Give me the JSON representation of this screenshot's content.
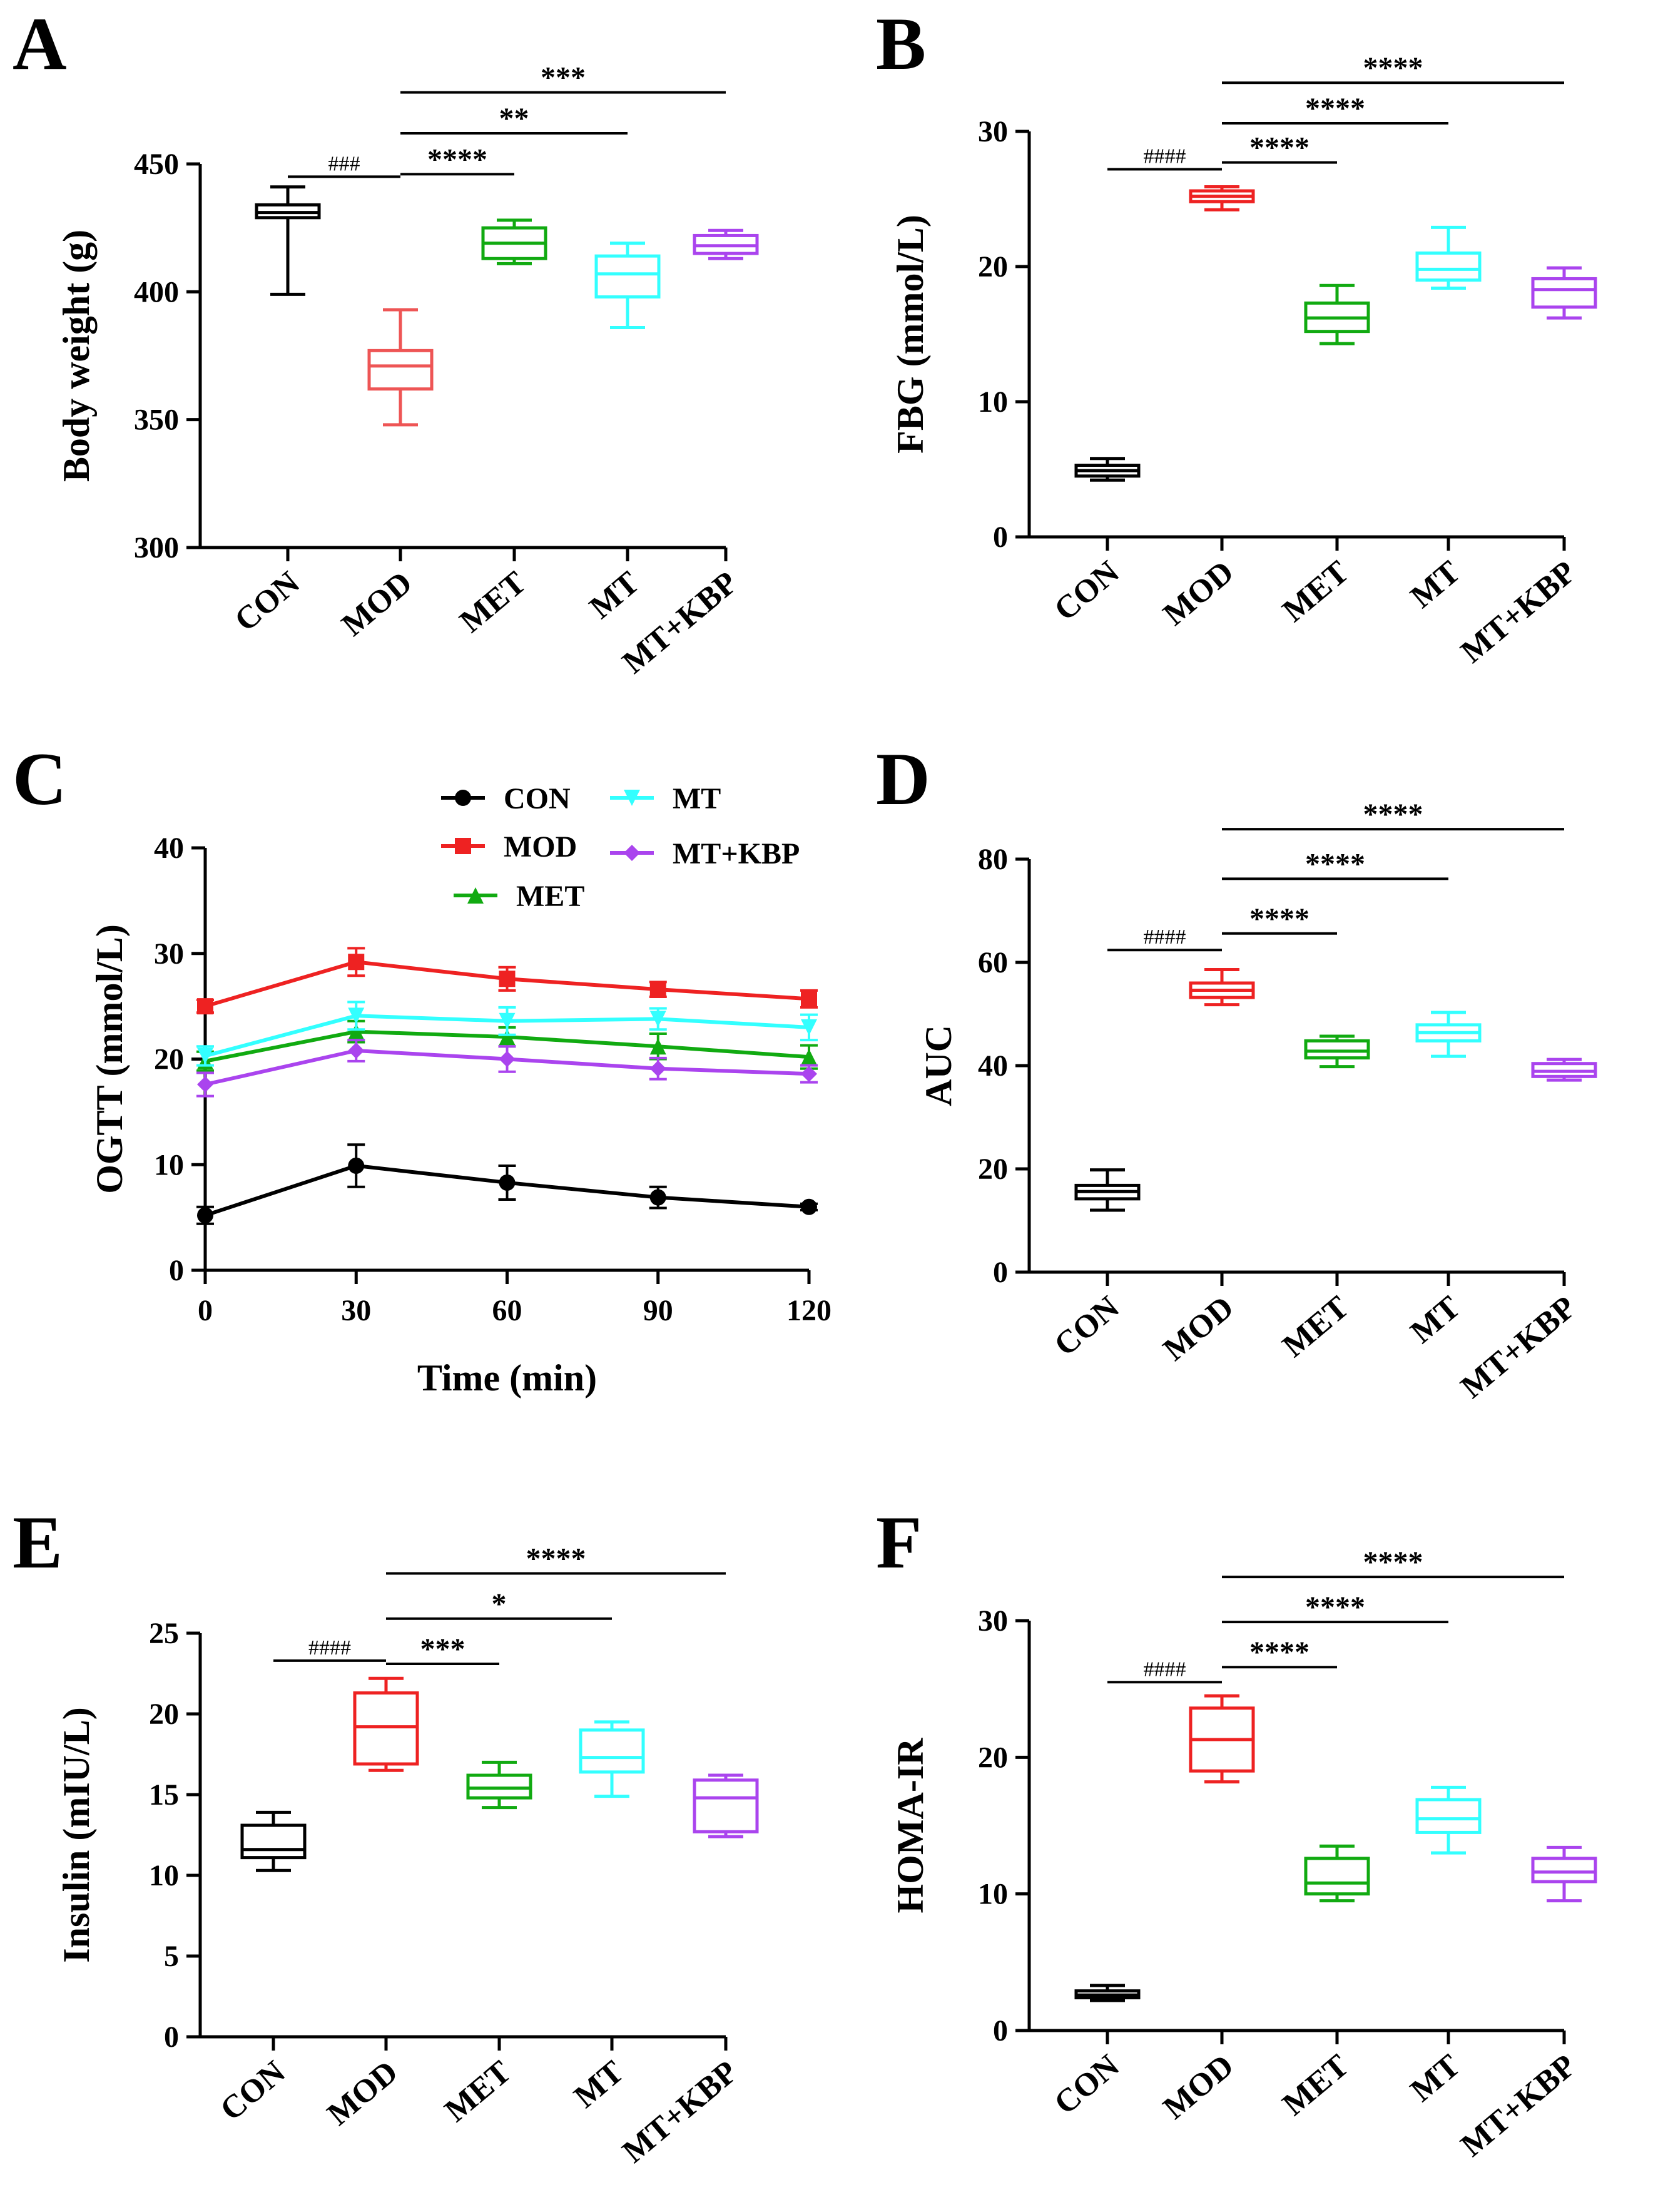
{
  "colors": {
    "CON": "#000000",
    "MOD": "#ee2222",
    "MET": "#11aa11",
    "MT": "#33ffff",
    "MT+KBP": "#aa44ee",
    "MOD_light": "#ee5555"
  },
  "chart_data": [
    {
      "panel": "A",
      "type": "box",
      "ylabel": "Body weight (g)",
      "ylim": [
        300,
        450
      ],
      "yticks": [
        "300",
        "350",
        "400",
        "450"
      ],
      "categories": [
        "CON",
        "MOD",
        "MET",
        "MT",
        "MT+KBP"
      ],
      "boxes": [
        {
          "group": "CON",
          "min": 399,
          "q1": 429,
          "median": 431,
          "q3": 434,
          "max": 441
        },
        {
          "group": "MOD",
          "min": 348,
          "q1": 362,
          "median": 371,
          "q3": 377,
          "max": 393
        },
        {
          "group": "MET",
          "min": 411,
          "q1": 413,
          "median": 419,
          "q3": 425,
          "max": 428
        },
        {
          "group": "MT",
          "min": 386,
          "q1": 398,
          "median": 407,
          "q3": 414,
          "max": 419
        },
        {
          "group": "MT+KBP",
          "min": 413,
          "q1": 415,
          "median": 418,
          "q3": 422,
          "max": 424
        }
      ],
      "significance": [
        {
          "from": "CON",
          "to": "MOD",
          "label": "###",
          "kind": "hash",
          "y": 445
        },
        {
          "from": "MOD",
          "to": "MET",
          "label": "****",
          "kind": "star",
          "y": 446
        },
        {
          "from": "MOD",
          "to": "MT",
          "label": "**",
          "kind": "star",
          "y": 462
        },
        {
          "from": "MOD",
          "to": "MT+KBP",
          "label": "***",
          "kind": "star",
          "y": 478
        }
      ]
    },
    {
      "panel": "B",
      "type": "box",
      "ylabel": "FBG (mmol/L)",
      "ylim": [
        0,
        30
      ],
      "yticks": [
        "0",
        "10",
        "20",
        "30"
      ],
      "categories": [
        "CON",
        "MOD",
        "MET",
        "MT",
        "MT+KBP"
      ],
      "boxes": [
        {
          "group": "CON",
          "min": 4.2,
          "q1": 4.5,
          "median": 4.9,
          "q3": 5.3,
          "max": 5.8
        },
        {
          "group": "MOD",
          "min": 24.2,
          "q1": 24.8,
          "median": 25.2,
          "q3": 25.6,
          "max": 25.9
        },
        {
          "group": "MET",
          "min": 14.3,
          "q1": 15.2,
          "median": 16.2,
          "q3": 17.3,
          "max": 18.6
        },
        {
          "group": "MT",
          "min": 18.4,
          "q1": 19.0,
          "median": 19.8,
          "q3": 21.0,
          "max": 22.9
        },
        {
          "group": "MT+KBP",
          "min": 16.2,
          "q1": 17.0,
          "median": 18.3,
          "q3": 19.1,
          "max": 19.9
        }
      ],
      "significance": [
        {
          "from": "CON",
          "to": "MOD",
          "label": "####",
          "kind": "hash",
          "y": 27.2
        },
        {
          "from": "MOD",
          "to": "MET",
          "label": "****",
          "kind": "star",
          "y": 27.7
        },
        {
          "from": "MOD",
          "to": "MT",
          "label": "****",
          "kind": "star",
          "y": 30.6
        },
        {
          "from": "MOD",
          "to": "MT+KBP",
          "label": "****",
          "kind": "star",
          "y": 33.6
        }
      ]
    },
    {
      "panel": "C",
      "type": "line",
      "xlabel": "Time (min)",
      "ylabel": "OGTT (mmol/L)",
      "x": [
        0,
        30,
        60,
        90,
        120
      ],
      "xlim": [
        0,
        120
      ],
      "ylim": [
        0,
        40
      ],
      "xticks": [
        "0",
        "30",
        "60",
        "90",
        "120"
      ],
      "yticks": [
        "0",
        "10",
        "20",
        "30",
        "40"
      ],
      "legend_position": "top-right",
      "series": [
        {
          "name": "CON",
          "marker": "circle",
          "values": [
            5.2,
            9.9,
            8.3,
            6.9,
            6.0
          ],
          "errors": [
            0.8,
            2.0,
            1.6,
            1.0,
            0.3
          ]
        },
        {
          "name": "MOD",
          "marker": "square",
          "values": [
            25.0,
            29.2,
            27.6,
            26.6,
            25.7
          ],
          "errors": [
            0.6,
            1.3,
            1.1,
            0.7,
            0.8
          ]
        },
        {
          "name": "MET",
          "marker": "triangle",
          "values": [
            19.8,
            22.6,
            22.1,
            21.2,
            20.2
          ],
          "errors": [
            0.9,
            1.0,
            0.9,
            1.2,
            1.1
          ]
        },
        {
          "name": "MT",
          "marker": "triangle-down",
          "values": [
            20.3,
            24.1,
            23.6,
            23.8,
            23.0
          ],
          "errors": [
            0.9,
            1.3,
            1.3,
            1.0,
            1.2
          ]
        },
        {
          "name": "MT+KBP",
          "marker": "diamond",
          "values": [
            17.6,
            20.8,
            20.0,
            19.1,
            18.6
          ],
          "errors": [
            1.1,
            1.0,
            1.2,
            1.0,
            0.8
          ]
        }
      ]
    },
    {
      "panel": "D",
      "type": "box",
      "ylabel": "AUC",
      "ylim": [
        0,
        80
      ],
      "yticks": [
        "0",
        "20",
        "40",
        "60",
        "80"
      ],
      "categories": [
        "CON",
        "MOD",
        "MET",
        "MT",
        "MT+KBP"
      ],
      "boxes": [
        {
          "group": "CON",
          "min": 12.0,
          "q1": 14.2,
          "median": 15.6,
          "q3": 16.8,
          "max": 19.8
        },
        {
          "group": "MOD",
          "min": 51.8,
          "q1": 53.2,
          "median": 54.6,
          "q3": 56.0,
          "max": 58.6
        },
        {
          "group": "MET",
          "min": 39.8,
          "q1": 41.5,
          "median": 42.8,
          "q3": 44.8,
          "max": 45.7
        },
        {
          "group": "MT",
          "min": 41.8,
          "q1": 44.8,
          "median": 46.4,
          "q3": 47.9,
          "max": 50.3
        },
        {
          "group": "MT+KBP",
          "min": 37.2,
          "q1": 37.9,
          "median": 38.9,
          "q3": 40.4,
          "max": 41.2
        }
      ],
      "significance": [
        {
          "from": "CON",
          "to": "MOD",
          "label": "####",
          "kind": "hash",
          "y": 62.4
        },
        {
          "from": "MOD",
          "to": "MET",
          "label": "****",
          "kind": "star",
          "y": 65.6
        },
        {
          "from": "MOD",
          "to": "MT",
          "label": "****",
          "kind": "star",
          "y": 76.2
        },
        {
          "from": "MOD",
          "to": "MT+KBP",
          "label": "****",
          "kind": "star",
          "y": 85.8
        }
      ]
    },
    {
      "panel": "E",
      "type": "box",
      "ylabel": "Insulin (mIU/L)",
      "ylim": [
        0,
        25
      ],
      "yticks": [
        "0",
        "5",
        "10",
        "15",
        "20",
        "25"
      ],
      "categories": [
        "CON",
        "MOD",
        "MET",
        "MT",
        "MT+KBP"
      ],
      "boxes": [
        {
          "group": "CON",
          "min": 10.3,
          "q1": 11.1,
          "median": 11.6,
          "q3": 13.1,
          "max": 13.9
        },
        {
          "group": "MOD",
          "min": 16.5,
          "q1": 16.9,
          "median": 19.2,
          "q3": 21.3,
          "max": 22.2
        },
        {
          "group": "MET",
          "min": 14.2,
          "q1": 14.8,
          "median": 15.4,
          "q3": 16.2,
          "max": 17.0
        },
        {
          "group": "MT",
          "min": 14.9,
          "q1": 16.4,
          "median": 17.3,
          "q3": 19.0,
          "max": 19.5
        },
        {
          "group": "MT+KBP",
          "min": 12.4,
          "q1": 12.7,
          "median": 14.8,
          "q3": 15.9,
          "max": 16.2
        }
      ],
      "significance": [
        {
          "from": "CON",
          "to": "MOD",
          "label": "####",
          "kind": "hash",
          "y": 23.3
        },
        {
          "from": "MOD",
          "to": "MET",
          "label": "***",
          "kind": "star",
          "y": 23.1
        },
        {
          "from": "MOD",
          "to": "MT",
          "label": "*",
          "kind": "star",
          "y": 25.9
        },
        {
          "from": "MOD",
          "to": "MT+KBP",
          "label": "****",
          "kind": "star",
          "y": 28.7
        }
      ]
    },
    {
      "panel": "F",
      "type": "box",
      "ylabel": "HOMA-IR",
      "ylim": [
        0,
        30
      ],
      "yticks": [
        "0",
        "10",
        "20",
        "30"
      ],
      "categories": [
        "CON",
        "MOD",
        "MET",
        "MT",
        "MT+KBP"
      ],
      "boxes": [
        {
          "group": "CON",
          "min": 2.2,
          "q1": 2.4,
          "median": 2.6,
          "q3": 2.9,
          "max": 3.3
        },
        {
          "group": "MOD",
          "min": 18.2,
          "q1": 19.0,
          "median": 21.3,
          "q3": 23.6,
          "max": 24.5
        },
        {
          "group": "MET",
          "min": 9.5,
          "q1": 10.0,
          "median": 10.8,
          "q3": 12.6,
          "max": 13.5
        },
        {
          "group": "MT",
          "min": 13.0,
          "q1": 14.5,
          "median": 15.5,
          "q3": 16.9,
          "max": 17.8
        },
        {
          "group": "MT+KBP",
          "min": 9.5,
          "q1": 10.9,
          "median": 11.6,
          "q3": 12.6,
          "max": 13.4
        }
      ],
      "significance": [
        {
          "from": "CON",
          "to": "MOD",
          "label": "####",
          "kind": "hash",
          "y": 25.5
        },
        {
          "from": "MOD",
          "to": "MET",
          "label": "****",
          "kind": "star",
          "y": 26.6
        },
        {
          "from": "MOD",
          "to": "MT",
          "label": "****",
          "kind": "star",
          "y": 29.9
        },
        {
          "from": "MOD",
          "to": "MT+KBP",
          "label": "****",
          "kind": "star",
          "y": 33.2
        }
      ]
    }
  ]
}
